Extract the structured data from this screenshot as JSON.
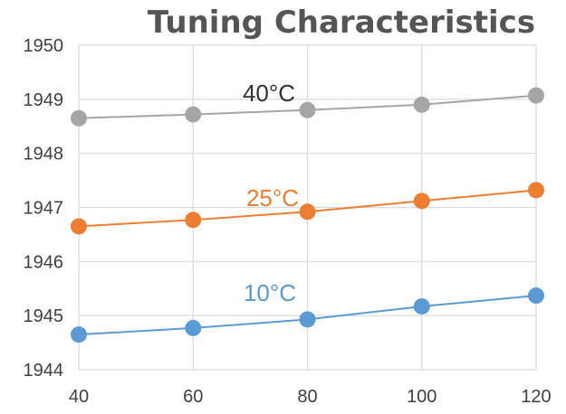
{
  "chart_data": {
    "type": "line",
    "title": "Tuning Characteristics",
    "xlabel": "",
    "ylabel": "",
    "x": [
      40,
      60,
      80,
      100,
      120
    ],
    "xlim": [
      40,
      120
    ],
    "ylim": [
      1944,
      1950
    ],
    "x_ticks": [
      "40",
      "60",
      "80",
      "100",
      "120"
    ],
    "y_ticks": [
      "1944",
      "1945",
      "1946",
      "1947",
      "1948",
      "1949",
      "1950"
    ],
    "grid": true,
    "legend": "none",
    "series": [
      {
        "name": "40°C",
        "color": "#a5a5a5",
        "values": [
          1948.65,
          1948.72,
          1948.8,
          1948.9,
          1949.07
        ]
      },
      {
        "name": "25°C",
        "color": "#ed7d31",
        "values": [
          1946.65,
          1946.77,
          1946.92,
          1947.12,
          1947.32
        ]
      },
      {
        "name": "10°C",
        "color": "#5b9bd5",
        "values": [
          1944.65,
          1944.77,
          1944.93,
          1945.17,
          1945.37
        ]
      }
    ]
  }
}
